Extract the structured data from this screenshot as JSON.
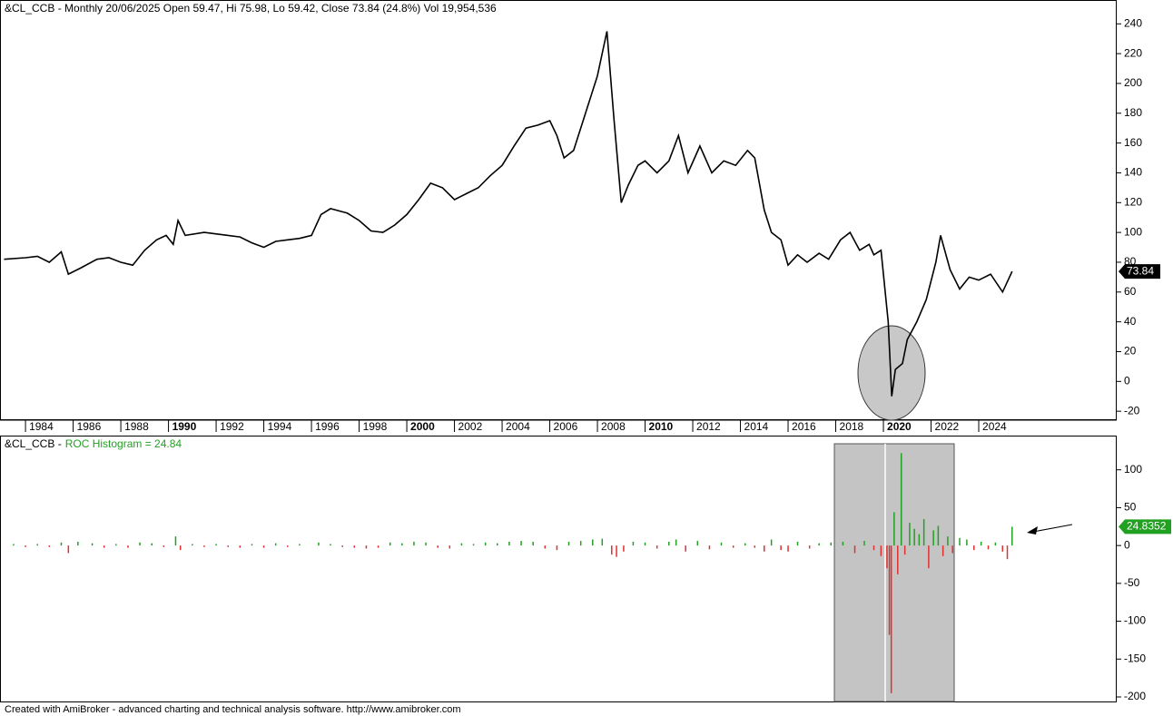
{
  "chart_data": [
    {
      "type": "line",
      "title": "&CL_CCB - Monthly 20/06/2025 Open 59.47, Hi 75.98, Lo 59.42, Close 73.84 (24.8%) Vol 19,954,536",
      "color": "#000000",
      "last_label": "73.84",
      "x": [
        1983.1,
        1984,
        1984.5,
        1985,
        1985.5,
        1985.8,
        1986.3,
        1987,
        1987.5,
        1988,
        1988.5,
        1989,
        1989.5,
        1989.9,
        1990.2,
        1990.4,
        1990.7,
        1991.5,
        1992.5,
        1993,
        1993.5,
        1994,
        1994.5,
        1995,
        1995.5,
        1996,
        1996.4,
        1996.8,
        1997.5,
        1998,
        1998.5,
        1999,
        1999.5,
        2000,
        2000.5,
        2001,
        2001.5,
        2002,
        2002.5,
        2003,
        2003.5,
        2004,
        2004.5,
        2005,
        2005.5,
        2006,
        2006.3,
        2006.6,
        2007,
        2007.5,
        2008,
        2008.4,
        2008.7,
        2009,
        2009.3,
        2009.7,
        2010,
        2010.5,
        2011,
        2011.4,
        2011.8,
        2012.3,
        2012.8,
        2013.3,
        2013.8,
        2014.3,
        2014.6,
        2015,
        2015.3,
        2015.7,
        2016,
        2016.4,
        2016.8,
        2017.3,
        2017.7,
        2018.2,
        2018.6,
        2019,
        2019.4,
        2019.6,
        2019.9,
        2020.2,
        2020.35,
        2020.5,
        2020.8,
        2021,
        2021.4,
        2021.8,
        2022.2,
        2022.4,
        2022.8,
        2023.2,
        2023.6,
        2024,
        2024.5,
        2025,
        2025.4
      ],
      "values": [
        82,
        83,
        84,
        80,
        87,
        72,
        76,
        82,
        83,
        80,
        78,
        88,
        95,
        98,
        92,
        108,
        98,
        100,
        98,
        97,
        93,
        90,
        94,
        95,
        96,
        98,
        112,
        116,
        113,
        108,
        101,
        100,
        105,
        112,
        122,
        133,
        130,
        122,
        126,
        130,
        138,
        145,
        158,
        170,
        172,
        175,
        165,
        150,
        155,
        180,
        205,
        235,
        175,
        120,
        132,
        145,
        148,
        140,
        148,
        165,
        140,
        158,
        140,
        148,
        145,
        155,
        150,
        115,
        100,
        95,
        78,
        85,
        80,
        86,
        82,
        95,
        100,
        88,
        92,
        85,
        88,
        40,
        -10,
        8,
        12,
        28,
        40,
        55,
        80,
        98,
        75,
        62,
        70,
        68,
        72,
        60,
        73.84
      ],
      "xlim": [
        1982.93,
        2029.79
      ],
      "ylim": [
        -26,
        256
      ],
      "xticks": [
        1984,
        1986,
        1988,
        1990,
        1992,
        1994,
        1996,
        1998,
        2000,
        2002,
        2004,
        2006,
        2008,
        2010,
        2012,
        2014,
        2016,
        2018,
        2020,
        2022,
        2024
      ],
      "yticks": [
        -20,
        0,
        20,
        40,
        60,
        80,
        100,
        120,
        140,
        160,
        180,
        200,
        220,
        240
      ]
    },
    {
      "type": "bar",
      "title": "&CL_CCB -",
      "subtitle": "ROC Histogram = 24.84",
      "up_color": "#22a022",
      "down_color": "#e03030",
      "last_label": "24.8352",
      "x": [
        1983.5,
        1984,
        1984.5,
        1985,
        1985.5,
        1985.8,
        1986.2,
        1986.8,
        1987.3,
        1987.8,
        1988.3,
        1988.8,
        1989.3,
        1989.8,
        1990.3,
        1990.5,
        1991,
        1991.5,
        1992,
        1992.5,
        1993,
        1993.5,
        1994,
        1994.5,
        1995,
        1995.5,
        1996.3,
        1996.8,
        1997.3,
        1997.8,
        1998.3,
        1998.8,
        1999.3,
        1999.8,
        2000.3,
        2000.8,
        2001.3,
        2001.8,
        2002.3,
        2002.8,
        2003.3,
        2003.8,
        2004.3,
        2004.8,
        2005.3,
        2005.8,
        2006.3,
        2006.8,
        2007.3,
        2007.8,
        2008.2,
        2008.6,
        2008.8,
        2009.1,
        2009.5,
        2010,
        2010.5,
        2011,
        2011.3,
        2011.7,
        2012.2,
        2012.7,
        2013.2,
        2013.7,
        2014.2,
        2014.6,
        2015,
        2015.3,
        2015.7,
        2016,
        2016.4,
        2016.9,
        2017.3,
        2017.8,
        2018.3,
        2018.8,
        2019.2,
        2019.6,
        2019.9,
        2020.15,
        2020.25,
        2020.33,
        2020.45,
        2020.6,
        2020.75,
        2020.9,
        2021.1,
        2021.3,
        2021.5,
        2021.7,
        2021.9,
        2022.1,
        2022.3,
        2022.5,
        2022.7,
        2022.9,
        2023.2,
        2023.5,
        2023.8,
        2024.1,
        2024.4,
        2024.7,
        2025,
        2025.2,
        2025.4
      ],
      "values": [
        2,
        -2,
        2,
        -2,
        4,
        -10,
        5,
        3,
        -3,
        2,
        -3,
        4,
        3,
        -2,
        12,
        -6,
        2,
        -2,
        2,
        -2,
        -3,
        2,
        -3,
        3,
        -2,
        2,
        4,
        2,
        -2,
        -3,
        -4,
        -3,
        4,
        3,
        5,
        4,
        -3,
        -4,
        3,
        2,
        4,
        3,
        5,
        6,
        5,
        -4,
        -6,
        5,
        6,
        8,
        9,
        -12,
        -15,
        -8,
        5,
        4,
        -4,
        5,
        8,
        -8,
        6,
        -5,
        4,
        -3,
        3,
        -3,
        -8,
        8,
        -6,
        -8,
        5,
        -4,
        3,
        4,
        5,
        -10,
        6,
        -6,
        -14,
        -30,
        -118,
        -195,
        44,
        -38,
        122,
        -12,
        30,
        22,
        15,
        35,
        -30,
        20,
        26,
        -14,
        12,
        -10,
        10,
        8,
        -6,
        5,
        -5,
        4,
        -8,
        -18,
        24.84
      ],
      "xlim": [
        1982.93,
        2029.79
      ],
      "ylim": [
        -206,
        144
      ],
      "yticks": [
        -200,
        -150,
        -100,
        -50,
        0,
        50,
        100
      ]
    }
  ],
  "footer": "Created with AmiBroker - advanced charting and technical analysis software. http://www.amibroker.com"
}
